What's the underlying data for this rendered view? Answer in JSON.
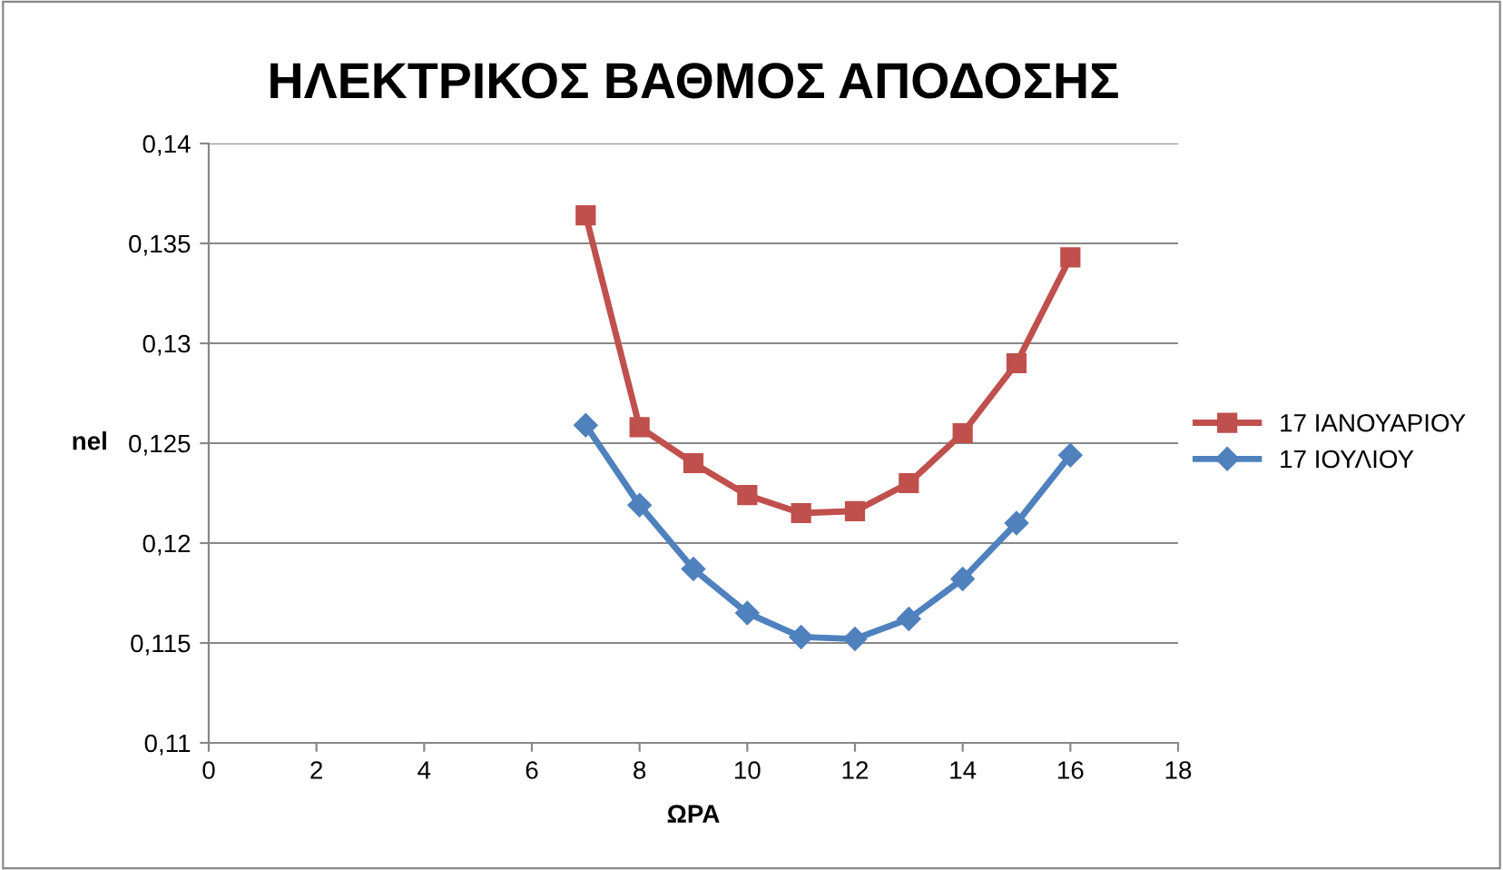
{
  "chart_data": {
    "type": "line",
    "title": "ΗΛΕΚΤΡΙΚΟΣ ΒΑΘΜΟΣ ΑΠΟΔΟΣΗΣ",
    "xlabel": "ΩΡΑ",
    "ylabel": "nel",
    "x": [
      7,
      8,
      9,
      10,
      11,
      12,
      13,
      14,
      15,
      16
    ],
    "series": [
      {
        "name": "17 ΙΑΝΟΥΑΡΙΟΥ",
        "color": "#c0504d",
        "marker": "square",
        "values": [
          0.1364,
          0.1258,
          0.124,
          0.1224,
          0.1215,
          0.1216,
          0.123,
          0.1255,
          0.129,
          0.1343
        ]
      },
      {
        "name": "17 ΙΟΥΛΙΟΥ",
        "color": "#4f81bd",
        "marker": "diamond",
        "values": [
          0.1259,
          0.1219,
          0.1187,
          0.1165,
          0.1153,
          0.1152,
          0.1162,
          0.1182,
          0.121,
          0.1244
        ]
      }
    ],
    "xlim": [
      0,
      18
    ],
    "xticks": [
      0,
      2,
      4,
      6,
      8,
      10,
      12,
      14,
      16,
      18
    ],
    "ylim": [
      0.11,
      0.14
    ],
    "yticks": [
      {
        "value": 0.11,
        "label": "0,11"
      },
      {
        "value": 0.115,
        "label": "0,115"
      },
      {
        "value": 0.12,
        "label": "0,12"
      },
      {
        "value": 0.125,
        "label": "0,125"
      },
      {
        "value": 0.13,
        "label": "0,13"
      },
      {
        "value": 0.135,
        "label": "0,135"
      },
      {
        "value": 0.14,
        "label": "0,14"
      }
    ],
    "grid": "y",
    "legend": "right",
    "line_style": "solid"
  }
}
